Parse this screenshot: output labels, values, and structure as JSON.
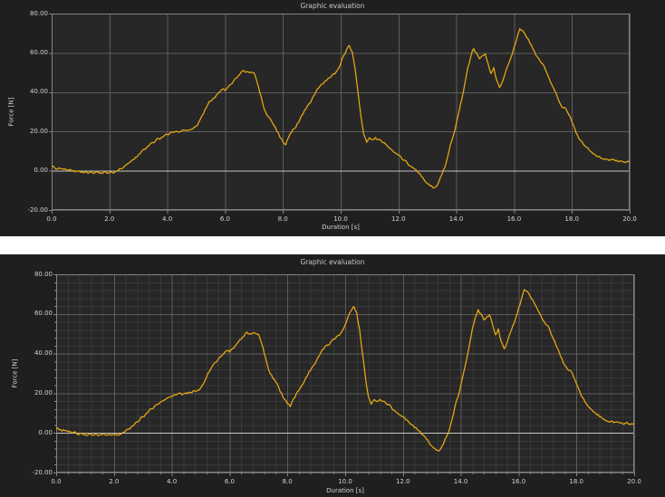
{
  "colors": {
    "line": "#E9A912",
    "panel_bg": "#1F1F1F",
    "plot_bg": "#272727",
    "grid_major": "#5C5C5C",
    "grid_minor": "#393939",
    "zero_line": "#C6C6C6",
    "frame": "#848484",
    "text": "#D2D2D2",
    "page_bg": "#FFFFFF"
  },
  "chart_data": [
    {
      "type": "line",
      "title": "Graphic evaluation",
      "xlabel": "Duration [s]",
      "ylabel": "Force [N]",
      "xlim": [
        0,
        20
      ],
      "ylim": [
        -20,
        80
      ],
      "x_tick_step": 2,
      "y_tick_step": 20,
      "x_ticks": [
        "0.0",
        "2.0",
        "4.0",
        "6.0",
        "8.0",
        "10.0",
        "12.0",
        "14.0",
        "16.0",
        "18.0",
        "20.0"
      ],
      "y_ticks": [
        "80.00",
        "60.00",
        "40.00",
        "20.00",
        "0.00",
        "-20.00"
      ],
      "grid": "major",
      "zero_line": true,
      "x_start": 0,
      "x_step": 0.1,
      "values": [
        2.3,
        1.6,
        0.9,
        1.1,
        0.7,
        0.5,
        0.3,
        -0.2,
        -0.6,
        -0.4,
        -0.8,
        -1.0,
        -0.6,
        -1.1,
        -0.8,
        -1.0,
        -0.7,
        -1.0,
        -0.8,
        -1.1,
        -0.8,
        -0.9,
        -0.5,
        0.2,
        1.0,
        2.0,
        3.2,
        4.2,
        5.6,
        6.9,
        8.1,
        9.6,
        11.0,
        12.1,
        13.4,
        14.4,
        15.4,
        16.3,
        17.0,
        17.9,
        18.4,
        19.3,
        19.7,
        20.1,
        19.6,
        20.3,
        20.6,
        20.4,
        21.1,
        21.6,
        22.7,
        25.0,
        28.0,
        31.0,
        33.5,
        35.5,
        37.0,
        38.5,
        40.0,
        41.5,
        40.8,
        42.5,
        44.0,
        45.8,
        47.2,
        48.8,
        50.8,
        50.1,
        50.4,
        50.2,
        49.8,
        45.5,
        40.0,
        34.5,
        30.0,
        27.5,
        25.5,
        23.0,
        20.0,
        17.0,
        14.8,
        13.2,
        17.0,
        19.5,
        21.5,
        24.0,
        26.5,
        29.0,
        31.5,
        34.0,
        36.2,
        38.8,
        41.8,
        43.4,
        44.2,
        45.8,
        47.3,
        48.6,
        49.3,
        51.5,
        54.5,
        58.5,
        61.5,
        63.8,
        60.5,
        52.0,
        40.0,
        28.0,
        18.5,
        14.5,
        16.8,
        15.8,
        16.9,
        15.9,
        15.2,
        14.4,
        12.8,
        11.4,
        10.2,
        9.0,
        8.1,
        6.6,
        5.4,
        4.1,
        2.6,
        1.6,
        0.6,
        -1.2,
        -3.0,
        -5.0,
        -6.6,
        -7.8,
        -8.8,
        -8.1,
        -5.5,
        -2.0,
        1.5,
        7.0,
        13.5,
        18.0,
        24.0,
        30.5,
        37.0,
        44.5,
        52.5,
        58.0,
        62.2,
        60.0,
        57.0,
        58.5,
        59.6,
        54.5,
        49.5,
        52.5,
        46.0,
        42.4,
        45.5,
        50.0,
        54.0,
        58.0,
        63.0,
        67.5,
        72.3,
        71.3,
        68.8,
        66.8,
        64.0,
        61.0,
        58.0,
        55.8,
        54.2,
        51.0,
        47.5,
        44.0,
        41.0,
        37.5,
        34.0,
        32.0,
        31.4,
        28.5,
        25.0,
        21.5,
        18.0,
        15.5,
        13.5,
        12.0,
        10.5,
        9.2,
        8.2,
        7.2,
        6.4,
        5.8,
        5.9,
        5.2,
        5.6,
        5.0,
        4.6,
        5.0,
        4.5,
        4.6,
        4.4
      ]
    },
    {
      "type": "line",
      "title": "Graphic evaluation",
      "xlabel": "Duration [s]",
      "ylabel": "Force [N]",
      "xlim": [
        0,
        20
      ],
      "ylim": [
        -20,
        80
      ],
      "x_tick_step": 2,
      "y_tick_step": 20,
      "x_minor_step": 0.4,
      "y_minor_step": 4,
      "x_ticks": [
        "0.0",
        "2.0",
        "4.0",
        "6.0",
        "8.0",
        "10.0",
        "12.0",
        "14.0",
        "16.0",
        "18.0",
        "20.0"
      ],
      "y_ticks": [
        "80.00",
        "60.00",
        "40.00",
        "20.00",
        "0.00",
        "-20.00"
      ],
      "grid": "major+minor",
      "zero_line": true,
      "x_start": 0,
      "x_step": 0.1,
      "values": [
        2.3,
        1.6,
        0.9,
        1.1,
        0.7,
        0.5,
        0.3,
        -0.2,
        -0.6,
        -0.4,
        -0.8,
        -1.0,
        -0.6,
        -1.1,
        -0.8,
        -1.0,
        -0.7,
        -1.0,
        -0.8,
        -1.1,
        -0.8,
        -0.9,
        -0.5,
        0.2,
        1.0,
        2.0,
        3.2,
        4.2,
        5.6,
        6.9,
        8.1,
        9.6,
        11.0,
        12.1,
        13.4,
        14.4,
        15.4,
        16.3,
        17.0,
        17.9,
        18.4,
        19.3,
        19.7,
        20.1,
        19.6,
        20.3,
        20.6,
        20.4,
        21.1,
        21.6,
        22.7,
        25.0,
        28.0,
        31.0,
        33.5,
        35.5,
        37.0,
        38.5,
        40.0,
        41.5,
        40.8,
        42.5,
        44.0,
        45.8,
        47.2,
        48.8,
        50.8,
        50.1,
        50.4,
        50.2,
        49.8,
        45.5,
        40.0,
        34.5,
        30.0,
        27.5,
        25.5,
        23.0,
        20.0,
        17.0,
        14.8,
        13.2,
        17.0,
        19.5,
        21.5,
        24.0,
        26.5,
        29.0,
        31.5,
        34.0,
        36.2,
        38.8,
        41.8,
        43.4,
        44.2,
        45.8,
        47.3,
        48.6,
        49.3,
        51.5,
        54.5,
        58.5,
        61.5,
        63.8,
        60.5,
        52.0,
        40.0,
        28.0,
        18.5,
        14.5,
        16.8,
        15.8,
        16.9,
        15.9,
        15.2,
        14.4,
        12.8,
        11.4,
        10.2,
        9.0,
        8.1,
        6.6,
        5.4,
        4.1,
        2.6,
        1.6,
        0.6,
        -1.2,
        -3.0,
        -5.0,
        -6.6,
        -7.8,
        -8.8,
        -8.1,
        -5.5,
        -2.0,
        1.5,
        7.0,
        13.5,
        18.0,
        24.0,
        30.5,
        37.0,
        44.5,
        52.5,
        58.0,
        62.2,
        60.0,
        57.0,
        58.5,
        59.6,
        54.5,
        49.5,
        52.5,
        46.0,
        42.4,
        45.5,
        50.0,
        54.0,
        58.0,
        63.0,
        67.5,
        72.3,
        71.3,
        68.8,
        66.8,
        64.0,
        61.0,
        58.0,
        55.8,
        54.2,
        51.0,
        47.5,
        44.0,
        41.0,
        37.5,
        34.0,
        32.0,
        31.4,
        28.5,
        25.0,
        21.5,
        18.0,
        15.5,
        13.5,
        12.0,
        10.5,
        9.2,
        8.2,
        7.2,
        6.4,
        5.8,
        5.9,
        5.2,
        5.6,
        5.0,
        4.6,
        5.0,
        4.5,
        4.6,
        4.4
      ]
    }
  ]
}
